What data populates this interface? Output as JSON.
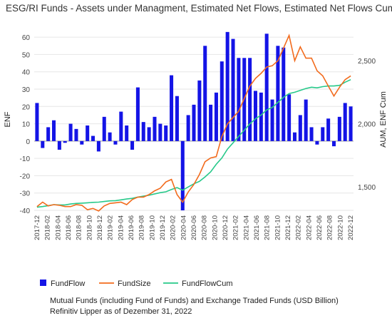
{
  "title": "ESG/RI Funds - Assets under Managment, Estimated Net Flows, Estimated Net Flows Cum",
  "footnote_1": "Mutual Funds (including Fund of Funds) and Exchange Traded Funds (USD Billion)",
  "footnote_2": "Refinitiv Lipper as of Dezember 31, 2022",
  "colors": {
    "bar": "#1414e6",
    "size": "#f26b1d",
    "cum": "#27c98a",
    "grid": "#e6e6e6"
  },
  "chart_data": {
    "type": "bar",
    "ylabel": "ENF",
    "y2label": "AUM, ENF Cum",
    "ylim": [
      -40,
      65
    ],
    "y2lim": [
      1315,
      2755
    ],
    "yticks": [
      -40,
      -30,
      -20,
      -10,
      0,
      10,
      20,
      30,
      40,
      50,
      60
    ],
    "y2ticks": [
      1500,
      2000,
      2500
    ],
    "y2ticklabels": [
      "1,500",
      "2,000",
      "2,500"
    ],
    "x_labels": [
      "2017-12",
      "2018-02",
      "2018-04",
      "2018-06",
      "2018-08",
      "2018-10",
      "2018-12",
      "2019-02",
      "2019-04",
      "2019-06",
      "2019-08",
      "2019-10",
      "2019-12",
      "2020-02",
      "2020-04",
      "2020-06",
      "2020-08",
      "2020-10",
      "2020-12",
      "2021-02",
      "2021-04",
      "2021-06",
      "2021-08",
      "2021-10",
      "2021-12",
      "2022-02",
      "2022-04",
      "2022-06",
      "2022-08",
      "2022-10",
      "2022-12"
    ],
    "legend": [
      {
        "name": "FundFlow",
        "kind": "bar"
      },
      {
        "name": "FundSize",
        "kind": "line"
      },
      {
        "name": "FundFlowCum",
        "kind": "line"
      }
    ],
    "series": [
      {
        "name": "FundFlow",
        "type": "bar",
        "axis": "left",
        "values": [
          22,
          -4,
          8,
          12,
          -5,
          -1,
          10,
          7,
          -2,
          9,
          3,
          -6,
          14,
          5,
          -2,
          17,
          9,
          -5,
          31,
          11,
          8,
          14,
          10,
          9,
          38,
          26,
          -40,
          15,
          21,
          35,
          55,
          21,
          28,
          46,
          63,
          59,
          48,
          48,
          48,
          29,
          28,
          62,
          24,
          55,
          54,
          27,
          5,
          15,
          24,
          8,
          -2,
          8,
          13,
          -3,
          14,
          22,
          20
        ]
      },
      {
        "name": "FundSize",
        "type": "line",
        "axis": "right",
        "values": [
          1345,
          1380,
          1350,
          1360,
          1355,
          1345,
          1345,
          1360,
          1355,
          1320,
          1330,
          1310,
          1350,
          1370,
          1375,
          1380,
          1360,
          1400,
          1420,
          1420,
          1440,
          1470,
          1490,
          1540,
          1560,
          1440,
          1380,
          1460,
          1520,
          1600,
          1700,
          1730,
          1740,
          1900,
          2000,
          2050,
          2100,
          2200,
          2300,
          2360,
          2400,
          2450,
          2460,
          2500,
          2600,
          2700,
          2500,
          2610,
          2520,
          2520,
          2420,
          2380,
          2300,
          2220,
          2290,
          2350,
          2380
        ]
      },
      {
        "name": "FundFlowCum",
        "type": "line",
        "axis": "right",
        "values": [
          1340,
          1345,
          1352,
          1360,
          1358,
          1358,
          1365,
          1370,
          1372,
          1375,
          1378,
          1380,
          1385,
          1390,
          1392,
          1398,
          1405,
          1410,
          1420,
          1428,
          1435,
          1445,
          1455,
          1462,
          1480,
          1495,
          1475,
          1500,
          1525,
          1545,
          1580,
          1620,
          1680,
          1730,
          1800,
          1850,
          1900,
          1950,
          2000,
          2040,
          2070,
          2110,
          2130,
          2170,
          2210,
          2240,
          2250,
          2265,
          2280,
          2290,
          2285,
          2295,
          2300,
          2300,
          2305,
          2330,
          2350
        ]
      }
    ]
  }
}
